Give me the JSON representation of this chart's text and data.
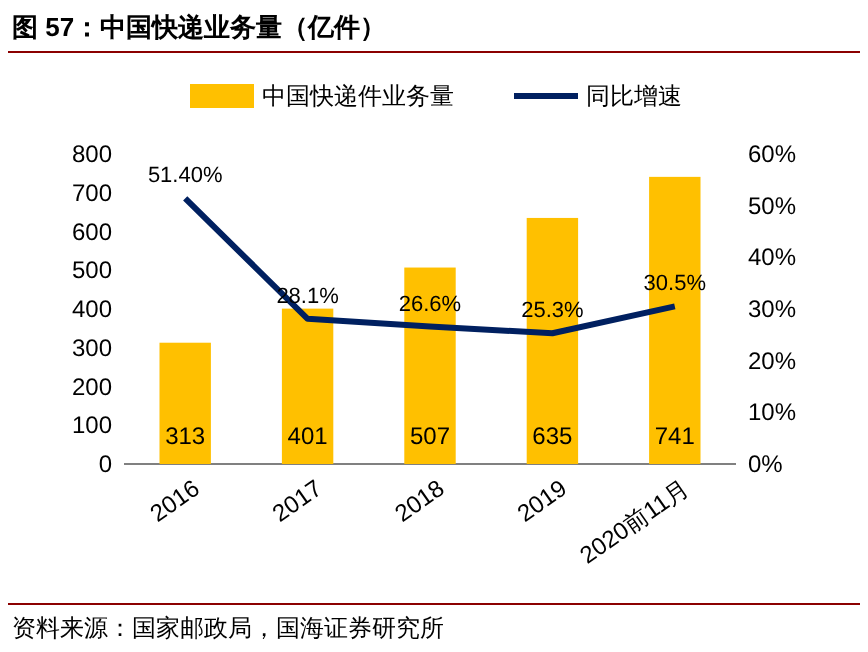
{
  "chart_data": {
    "type": "bar",
    "title": "图 57：中国快递业务量（亿件）",
    "categories": [
      "2016",
      "2017",
      "2018",
      "2019",
      "2020前11月"
    ],
    "series": [
      {
        "name": "中国快递件业务量",
        "color": "#ffc000",
        "values": [
          313,
          401,
          507,
          635,
          741
        ],
        "value_labels": [
          "313",
          "401",
          "507",
          "635",
          "741"
        ]
      },
      {
        "name": "同比增速",
        "type": "line",
        "axis": "y2",
        "color": "#002060",
        "values": [
          51.4,
          28.1,
          26.6,
          25.3,
          30.5
        ],
        "value_labels": [
          "51.40%",
          "28.1%",
          "26.6%",
          "25.3%",
          "30.5%"
        ]
      }
    ],
    "ylim": [
      0,
      800
    ],
    "yticks": [
      0,
      100,
      200,
      300,
      400,
      500,
      600,
      700,
      800
    ],
    "y2lim": [
      0,
      60
    ],
    "y2ticks": [
      {
        "value": 0,
        "label": "0%"
      },
      {
        "value": 10,
        "label": "10%"
      },
      {
        "value": 20,
        "label": "20%"
      },
      {
        "value": 30,
        "label": "30%"
      },
      {
        "value": 40,
        "label": "40%"
      },
      {
        "value": 50,
        "label": "50%"
      },
      {
        "value": 60,
        "label": "60%"
      }
    ],
    "legend": "top",
    "grid": false,
    "marker": "none",
    "annotations": [
      "资料来源：国家邮政局，国海证券研究所"
    ]
  }
}
